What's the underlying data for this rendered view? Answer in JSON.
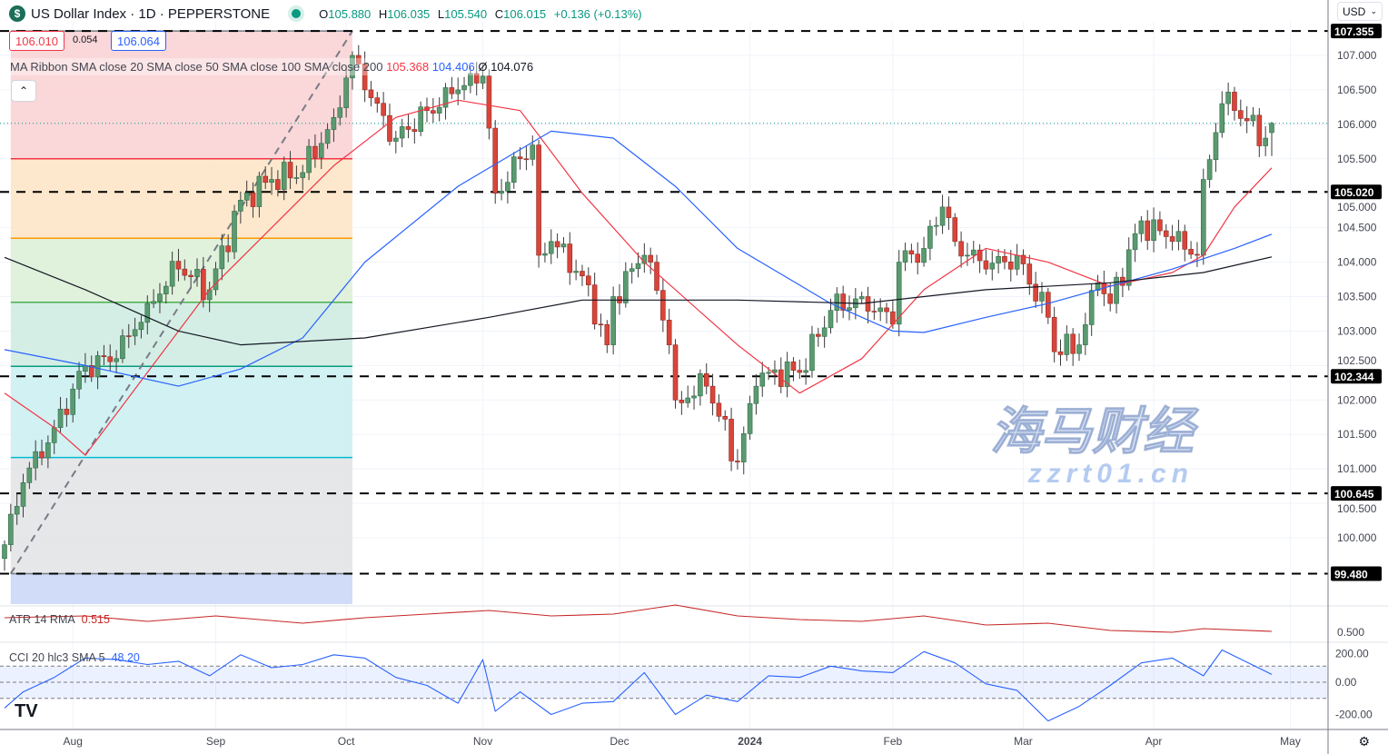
{
  "header": {
    "symbol_icon": "dollar-sign-icon",
    "logo_letter": "$",
    "title": "US Dollar Index · 1D · PEPPERSTONE",
    "ohlc": {
      "o_label": "O",
      "o": "105.880",
      "h_label": "H",
      "h": "106.035",
      "l_label": "L",
      "l": "105.540",
      "c_label": "C",
      "c": "106.015",
      "change": "+0.136 (+0.13%)"
    },
    "bid": "106.010",
    "spread": "0.054",
    "ask": "106.064"
  },
  "currency": {
    "label": "USD"
  },
  "ma_legend": {
    "title": "MA Ribbon SMA close 20 SMA close 50 SMA close 100 SMA close 200",
    "v20": "105.368",
    "v50": "104.406",
    "v200_prefix": "Ø",
    "v200": "104.076"
  },
  "atr_legend": {
    "title": "ATR 14 RMA",
    "value": "0.515"
  },
  "cci_legend": {
    "title": "CCI 20 hlc3 SMA 5",
    "value": "48.20"
  },
  "watermark": {
    "cn": "海马财经",
    "url": "zzrt01.cn"
  },
  "colors": {
    "up": "#5b9a70",
    "down": "#d9453a",
    "sma20": "#f23645",
    "sma50": "#2962ff",
    "sma200": "#131722",
    "atr": "#c62828",
    "cci": "#2962ff"
  },
  "chart_data": {
    "type": "candlestick",
    "price_axis": {
      "ylim": [
        99.0,
        107.4
      ],
      "ticks": [
        "100.000",
        "100.500",
        "101.000",
        "101.500",
        "102.000",
        "102.500",
        "103.000",
        "103.500",
        "104.000",
        "104.500",
        "105.000",
        "105.500",
        "106.000",
        "106.500",
        "107.000"
      ]
    },
    "time_axis": {
      "ticks": [
        {
          "label": "Aug",
          "date": "2023-08-01"
        },
        {
          "label": "Sep",
          "date": "2023-09-01"
        },
        {
          "label": "Oct",
          "date": "2023-10-02"
        },
        {
          "label": "Nov",
          "date": "2023-11-01"
        },
        {
          "label": "Dec",
          "date": "2023-12-01"
        },
        {
          "label": "2024",
          "date": "2024-01-01"
        },
        {
          "label": "Feb",
          "date": "2024-02-01"
        },
        {
          "label": "Mar",
          "date": "2024-03-01"
        },
        {
          "label": "Apr",
          "date": "2024-04-01"
        },
        {
          "label": "May",
          "date": "2024-05-01"
        }
      ]
    },
    "date_range": [
      "2023-07-17",
      "2024-04-26"
    ],
    "close_waypoints": [
      [
        "2023-07-17",
        99.9
      ],
      [
        "2023-07-20",
        100.8
      ],
      [
        "2023-07-27",
        101.6
      ],
      [
        "2023-08-03",
        102.5
      ],
      [
        "2023-08-10",
        102.6
      ],
      [
        "2023-08-17",
        103.4
      ],
      [
        "2023-08-24",
        103.9
      ],
      [
        "2023-08-31",
        103.6
      ],
      [
        "2023-09-07",
        104.9
      ],
      [
        "2023-09-14",
        105.2
      ],
      [
        "2023-09-21",
        105.3
      ],
      [
        "2023-09-28",
        106.1
      ],
      [
        "2023-10-03",
        107.0
      ],
      [
        "2023-10-05",
        106.5
      ],
      [
        "2023-10-12",
        105.8
      ],
      [
        "2023-10-19",
        106.2
      ],
      [
        "2023-10-26",
        106.5
      ],
      [
        "2023-11-01",
        106.7
      ],
      [
        "2023-11-03",
        105.0
      ],
      [
        "2023-11-09",
        105.5
      ],
      [
        "2023-11-13",
        105.7
      ],
      [
        "2023-11-14",
        104.1
      ],
      [
        "2023-11-16",
        104.3
      ],
      [
        "2023-11-23",
        103.8
      ],
      [
        "2023-11-29",
        102.8
      ],
      [
        "2023-11-30",
        103.5
      ],
      [
        "2023-12-07",
        104.1
      ],
      [
        "2023-12-08",
        104.0
      ],
      [
        "2023-12-13",
        102.8
      ],
      [
        "2023-12-14",
        102.0
      ],
      [
        "2023-12-21",
        102.2
      ],
      [
        "2023-12-28",
        101.1
      ],
      [
        "2024-01-02",
        102.2
      ],
      [
        "2024-01-04",
        102.4
      ],
      [
        "2024-01-11",
        102.4
      ],
      [
        "2024-01-18",
        103.3
      ],
      [
        "2024-01-25",
        103.5
      ],
      [
        "2024-02-01",
        103.1
      ],
      [
        "2024-02-02",
        104.0
      ],
      [
        "2024-02-08",
        104.2
      ],
      [
        "2024-02-13",
        104.8
      ],
      [
        "2024-02-15",
        104.3
      ],
      [
        "2024-02-22",
        103.9
      ],
      [
        "2024-02-29",
        104.1
      ],
      [
        "2024-03-07",
        103.2
      ],
      [
        "2024-03-08",
        102.7
      ],
      [
        "2024-03-14",
        102.8
      ],
      [
        "2024-03-19",
        103.7
      ],
      [
        "2024-03-21",
        103.4
      ],
      [
        "2024-03-28",
        104.6
      ],
      [
        "2024-04-04",
        104.3
      ],
      [
        "2024-04-10",
        104.1
      ],
      [
        "2024-04-11",
        105.2
      ],
      [
        "2024-04-16",
        106.3
      ],
      [
        "2024-04-18",
        106.2
      ],
      [
        "2024-04-25",
        105.8
      ],
      [
        "2024-04-26",
        106.015
      ]
    ],
    "last_bar": {
      "open": 105.88,
      "high": 106.035,
      "low": 105.54,
      "close": 106.015
    },
    "current_price": 106.015,
    "series": [
      {
        "name": "SMA close 20",
        "value": 105.368,
        "points": [
          [
            "2023-07-17",
            102.1
          ],
          [
            "2023-07-27",
            101.6
          ],
          [
            "2023-08-03",
            101.2
          ],
          [
            "2023-08-17",
            102.4
          ],
          [
            "2023-08-31",
            103.6
          ],
          [
            "2023-09-14",
            104.5
          ],
          [
            "2023-09-28",
            105.4
          ],
          [
            "2023-10-12",
            106.1
          ],
          [
            "2023-10-26",
            106.35
          ],
          [
            "2023-11-09",
            106.2
          ],
          [
            "2023-11-23",
            105.0
          ],
          [
            "2023-12-07",
            104.0
          ],
          [
            "2023-12-21",
            103.2
          ],
          [
            "2023-12-28",
            102.8
          ],
          [
            "2024-01-11",
            102.1
          ],
          [
            "2024-01-25",
            102.6
          ],
          [
            "2024-02-08",
            103.6
          ],
          [
            "2024-02-22",
            104.2
          ],
          [
            "2024-03-07",
            104.0
          ],
          [
            "2024-03-21",
            103.65
          ],
          [
            "2024-04-04",
            103.85
          ],
          [
            "2024-04-11",
            104.1
          ],
          [
            "2024-04-18",
            104.8
          ],
          [
            "2024-04-26",
            105.368
          ]
        ]
      },
      {
        "name": "SMA close 50",
        "value": 104.406,
        "points": [
          [
            "2023-07-17",
            102.73
          ],
          [
            "2023-08-03",
            102.5
          ],
          [
            "2023-08-24",
            102.2
          ],
          [
            "2023-09-07",
            102.45
          ],
          [
            "2023-09-21",
            102.9
          ],
          [
            "2023-10-05",
            104.0
          ],
          [
            "2023-10-26",
            105.1
          ],
          [
            "2023-11-16",
            105.9
          ],
          [
            "2023-11-30",
            105.8
          ],
          [
            "2023-12-14",
            105.1
          ],
          [
            "2023-12-28",
            104.2
          ],
          [
            "2024-01-18",
            103.4
          ],
          [
            "2024-02-01",
            103.0
          ],
          [
            "2024-02-08",
            102.98
          ],
          [
            "2024-02-22",
            103.2
          ],
          [
            "2024-03-07",
            103.4
          ],
          [
            "2024-03-21",
            103.65
          ],
          [
            "2024-04-04",
            103.9
          ],
          [
            "2024-04-18",
            104.2
          ],
          [
            "2024-04-26",
            104.406
          ]
        ]
      },
      {
        "name": "SMA close 200",
        "value": 104.076,
        "points": [
          [
            "2023-07-17",
            104.07
          ],
          [
            "2023-08-03",
            103.6
          ],
          [
            "2023-08-24",
            103.0
          ],
          [
            "2023-09-07",
            102.8
          ],
          [
            "2023-10-05",
            102.9
          ],
          [
            "2023-11-02",
            103.2
          ],
          [
            "2023-11-23",
            103.45
          ],
          [
            "2023-12-28",
            103.45
          ],
          [
            "2024-01-25",
            103.4
          ],
          [
            "2024-02-22",
            103.6
          ],
          [
            "2024-03-21",
            103.7
          ],
          [
            "2024-04-11",
            103.85
          ],
          [
            "2024-04-26",
            104.076
          ]
        ]
      }
    ],
    "horizontal_levels": [
      107.355,
      105.02,
      102.344,
      100.645,
      99.48
    ],
    "horizontal_level_labels": [
      "107.355",
      "105.020",
      "102.344",
      "100.645",
      "99.480"
    ],
    "fib_retracement": {
      "from": {
        "date": "2023-07-18",
        "price": 99.48
      },
      "to": {
        "date": "2023-10-03",
        "price": 107.355
      },
      "levels": [
        {
          "ratio": 0,
          "price": 107.355,
          "color": "#787b86",
          "fill": "#f9d3d5"
        },
        {
          "ratio": 0.236,
          "price": 105.5,
          "color": "#f23645",
          "fill": "#fde5c8"
        },
        {
          "ratio": 0.382,
          "price": 104.347,
          "color": "#ff9800",
          "fill": "#ddefd8"
        },
        {
          "ratio": 0.5,
          "price": 103.418,
          "color": "#4caf50",
          "fill": "#cfece2"
        },
        {
          "ratio": 0.618,
          "price": 102.488,
          "color": "#089981",
          "fill": "#ccf0f2"
        },
        {
          "ratio": 0.786,
          "price": 101.165,
          "color": "#00bcd4",
          "fill": "#e3e4e7"
        },
        {
          "ratio": 1,
          "price": 99.48,
          "color": "#787b86",
          "fill": "#cbd8f7"
        }
      ]
    },
    "atr": {
      "name": "ATR 14 RMA",
      "tick": "0.500",
      "points": [
        [
          "2023-07-17",
          0.59
        ],
        [
          "2023-08-03",
          0.6
        ],
        [
          "2023-08-17",
          0.57
        ],
        [
          "2023-09-01",
          0.6
        ],
        [
          "2023-09-21",
          0.56
        ],
        [
          "2023-10-05",
          0.59
        ],
        [
          "2023-10-19",
          0.61
        ],
        [
          "2023-11-02",
          0.63
        ],
        [
          "2023-11-16",
          0.6
        ],
        [
          "2023-11-30",
          0.61
        ],
        [
          "2023-12-14",
          0.66
        ],
        [
          "2023-12-28",
          0.6
        ],
        [
          "2024-01-11",
          0.58
        ],
        [
          "2024-01-25",
          0.57
        ],
        [
          "2024-02-08",
          0.6
        ],
        [
          "2024-02-22",
          0.55
        ],
        [
          "2024-03-07",
          0.56
        ],
        [
          "2024-03-21",
          0.52
        ],
        [
          "2024-04-04",
          0.51
        ],
        [
          "2024-04-11",
          0.53
        ],
        [
          "2024-04-26",
          0.515
        ]
      ]
    },
    "cci": {
      "name": "CCI 20 hlc3 SMA 5",
      "ticks": [
        "200.00",
        "0.00",
        "-200.00"
      ],
      "band": [
        -100,
        100
      ],
      "points": [
        [
          "2023-07-17",
          -160
        ],
        [
          "2023-07-20",
          -60
        ],
        [
          "2023-07-27",
          30
        ],
        [
          "2023-08-03",
          150
        ],
        [
          "2023-08-10",
          140
        ],
        [
          "2023-08-17",
          110
        ],
        [
          "2023-08-24",
          130
        ],
        [
          "2023-08-31",
          40
        ],
        [
          "2023-09-07",
          170
        ],
        [
          "2023-09-14",
          90
        ],
        [
          "2023-09-21",
          110
        ],
        [
          "2023-09-28",
          170
        ],
        [
          "2023-10-05",
          150
        ],
        [
          "2023-10-12",
          30
        ],
        [
          "2023-10-19",
          -20
        ],
        [
          "2023-10-26",
          -130
        ],
        [
          "2023-11-01",
          140
        ],
        [
          "2023-11-03",
          -180
        ],
        [
          "2023-11-09",
          -60
        ],
        [
          "2023-11-16",
          -200
        ],
        [
          "2023-11-23",
          -130
        ],
        [
          "2023-11-30",
          -120
        ],
        [
          "2023-12-07",
          60
        ],
        [
          "2023-12-14",
          -200
        ],
        [
          "2023-12-21",
          -80
        ],
        [
          "2023-12-28",
          -120
        ],
        [
          "2024-01-04",
          40
        ],
        [
          "2024-01-11",
          30
        ],
        [
          "2024-01-18",
          100
        ],
        [
          "2024-01-25",
          70
        ],
        [
          "2024-02-01",
          60
        ],
        [
          "2024-02-08",
          190
        ],
        [
          "2024-02-15",
          120
        ],
        [
          "2024-02-22",
          -10
        ],
        [
          "2024-02-29",
          -50
        ],
        [
          "2024-03-07",
          -240
        ],
        [
          "2024-03-14",
          -150
        ],
        [
          "2024-03-21",
          -20
        ],
        [
          "2024-03-28",
          120
        ],
        [
          "2024-04-04",
          150
        ],
        [
          "2024-04-11",
          40
        ],
        [
          "2024-04-16",
          200
        ],
        [
          "2024-04-26",
          48.2
        ]
      ]
    }
  }
}
